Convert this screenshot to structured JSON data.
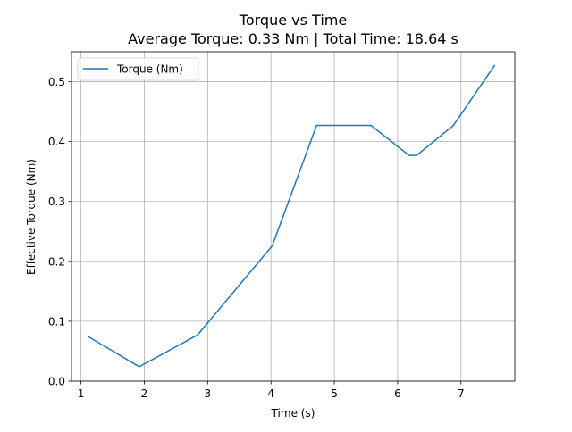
{
  "chart_data": {
    "type": "line",
    "title": "Torque vs Time",
    "subtitle": "Average Torque: 0.33 Nm | Total Time: 18.64 s",
    "xlabel": "Time (s)",
    "ylabel": "Effective Torque (Nm)",
    "xlim": [
      0.85,
      7.85
    ],
    "ylim": [
      0.0,
      0.55
    ],
    "xticks": [
      1,
      2,
      3,
      4,
      5,
      6,
      7
    ],
    "yticks": [
      0.0,
      0.1,
      0.2,
      0.3,
      0.4,
      0.5
    ],
    "xtick_labels": [
      "1",
      "2",
      "3",
      "4",
      "5",
      "6",
      "7"
    ],
    "ytick_labels": [
      "0.0",
      "0.1",
      "0.2",
      "0.3",
      "0.4",
      "0.5"
    ],
    "grid": true,
    "legend_position": "upper-left",
    "series": [
      {
        "name": "Torque (Nm)",
        "color": "#1f77b4",
        "x": [
          1.12,
          1.92,
          2.84,
          4.02,
          4.72,
          5.58,
          6.18,
          6.3,
          6.88,
          7.53
        ],
        "y": [
          0.074,
          0.024,
          0.077,
          0.226,
          0.427,
          0.427,
          0.377,
          0.377,
          0.427,
          0.527
        ]
      }
    ]
  }
}
